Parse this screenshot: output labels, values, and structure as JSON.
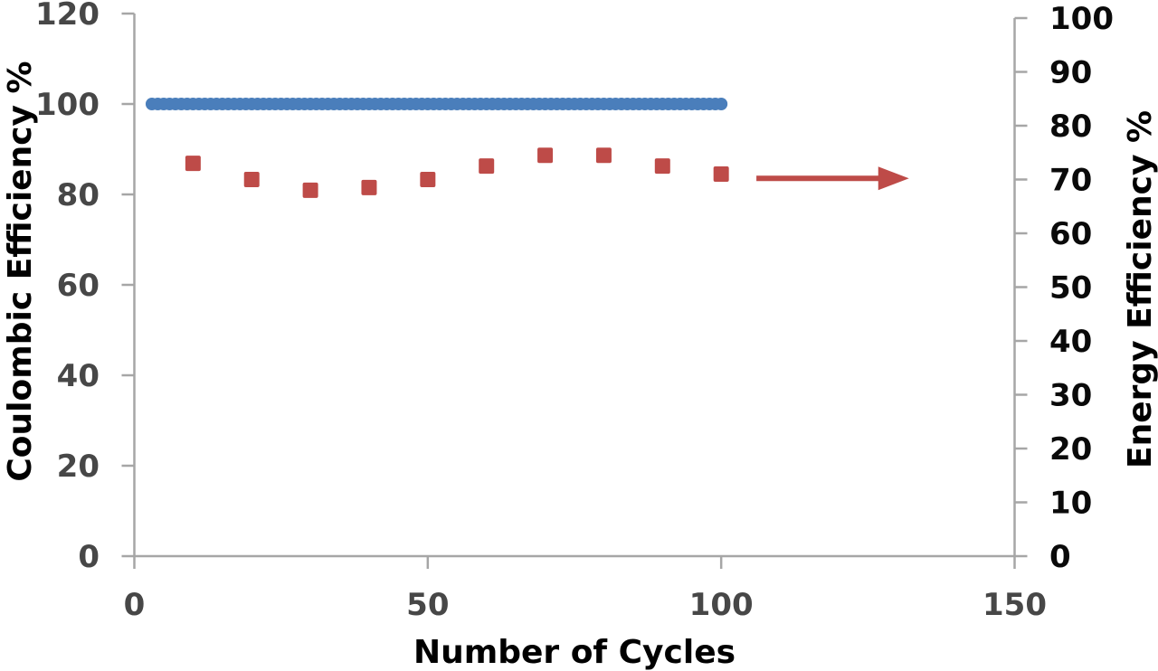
{
  "chart_data": {
    "type": "scatter",
    "title": "",
    "xlabel": "Number of Cycles",
    "ylabel_left": "Coulombic Efficiency %",
    "ylabel_right": "Energy Efficiency %",
    "x_axis": {
      "min": 0,
      "max": 150,
      "ticks": [
        0,
        50,
        100,
        150
      ]
    },
    "left_axis": {
      "min": 0,
      "max": 120,
      "ticks": [
        0,
        20,
        40,
        60,
        80,
        100,
        120
      ]
    },
    "right_axis": {
      "min": 0,
      "max": 100,
      "ticks": [
        0,
        10,
        20,
        30,
        40,
        50,
        60,
        70,
        80,
        90,
        100
      ]
    },
    "grid": false,
    "legend": "none",
    "series": [
      {
        "name": "Coulombic Efficiency %",
        "axis": "left",
        "marker": "circle",
        "marker_radius": 7,
        "color": "#4a7ebb",
        "x_start": 3,
        "x_end": 100,
        "x_step": 1,
        "constant_value": 100
      },
      {
        "name": "Energy Efficiency %",
        "axis": "right",
        "marker": "square",
        "marker_size": 17,
        "color": "#be4b48",
        "x": [
          10,
          20,
          30,
          40,
          50,
          60,
          70,
          80,
          90,
          100
        ],
        "values": [
          73,
          70,
          68,
          68.5,
          70,
          72.5,
          74.5,
          74.5,
          72.5,
          71
        ]
      }
    ],
    "annotation_arrow": {
      "axis": "right",
      "x_start": 106,
      "x_end": 132,
      "y": 70.2,
      "color": "#be4b48"
    }
  },
  "style": {
    "background": "#ffffff",
    "axis_line_color": "#a6a6a6",
    "gray_tick_label_color": "#474747",
    "black_label_color": "#0a0a0a",
    "blue_series_color": "#4a7ebb",
    "red_series_color": "#be4b48"
  }
}
